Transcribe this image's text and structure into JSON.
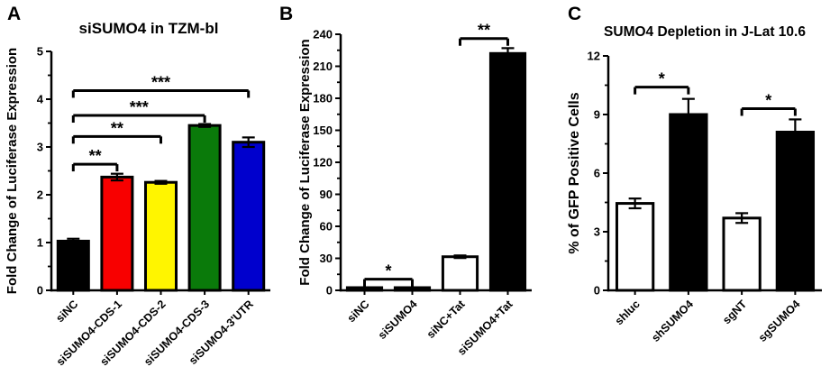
{
  "figure": {
    "background": "#FFFFFF",
    "axis_color": "#000000",
    "panels": [
      {
        "letter": "A",
        "title": "siSUMO4 in TZM-bl"
      },
      {
        "letter": "B",
        "title": ""
      },
      {
        "letter": "C",
        "title": "SUMO4 Depletion in J-Lat 10.6"
      }
    ]
  },
  "chart_data": [
    {
      "panel": "A",
      "type": "bar",
      "title": "siSUMO4 in TZM-bl",
      "xlabel": "",
      "ylabel": "Fold Change of Luciferase Expression",
      "ylim": [
        0,
        5
      ],
      "yticks": [
        0,
        1,
        2,
        3,
        4,
        5
      ],
      "grid": false,
      "legend": "none",
      "categories": [
        "siNC",
        "siSUMO4-CDS-1",
        "siSUMO4-CDS-2",
        "siSUMO4-CDS-3",
        "siSUMO4-3'UTR"
      ],
      "values": [
        1.03,
        2.37,
        2.26,
        3.45,
        3.1
      ],
      "errors": [
        0.05,
        0.07,
        0.03,
        0.03,
        0.1
      ],
      "bar_fills": [
        "#000000",
        "#F80000",
        "#FFF500",
        "#0A7A0A",
        "#0000CD"
      ],
      "significance": [
        {
          "groups": [
            "siNC",
            "siSUMO4-CDS-1"
          ],
          "y": 2.64,
          "label": "**"
        },
        {
          "groups": [
            "siNC",
            "siSUMO4-CDS-2"
          ],
          "y": 3.22,
          "label": "**"
        },
        {
          "groups": [
            "siNC",
            "siSUMO4-CDS-3"
          ],
          "y": 3.66,
          "label": "***"
        },
        {
          "groups": [
            "siNC",
            "siSUMO4-3'UTR"
          ],
          "y": 4.18,
          "label": "***"
        }
      ]
    },
    {
      "panel": "B",
      "type": "bar",
      "title": "",
      "xlabel": "",
      "ylabel": "Fold Change of Luciferase Expression",
      "ylim": [
        0,
        240
      ],
      "yticks": [
        0,
        30,
        60,
        90,
        120,
        150,
        180,
        210,
        240
      ],
      "grid": false,
      "legend": "none",
      "categories": [
        "siNC",
        "siSUMO4",
        "siNC+Tat",
        "siSUMO4+Tat"
      ],
      "values": [
        1.5,
        2.5,
        31.5,
        222
      ],
      "errors": [
        0,
        0,
        1.2,
        5
      ],
      "bar_fills": [
        "#000000",
        "#000000",
        "#FFFFFF",
        "#000000"
      ],
      "significance": [
        {
          "groups": [
            "siNC",
            "siSUMO4"
          ],
          "y": 10.5,
          "label": "*"
        },
        {
          "groups": [
            "siNC+Tat",
            "siSUMO4+Tat"
          ],
          "y": 236,
          "label": "**"
        }
      ]
    },
    {
      "panel": "C",
      "type": "bar",
      "title": "SUMO4 Depletion in J-Lat 10.6",
      "xlabel": "",
      "ylabel": "% of GFP Positive Cells",
      "ylim": [
        0,
        12
      ],
      "yticks": [
        0,
        3,
        6,
        9,
        12
      ],
      "grid": false,
      "legend": "none",
      "categories": [
        "shluc",
        "shSUMO4",
        "sgNT",
        "sgSUMO4"
      ],
      "values": [
        4.45,
        9.0,
        3.7,
        8.1
      ],
      "errors": [
        0.25,
        0.8,
        0.25,
        0.65
      ],
      "bar_fills": [
        "#FFFFFF",
        "#000000",
        "#FFFFFF",
        "#000000"
      ],
      "significance": [
        {
          "groups": [
            "shluc",
            "shSUMO4"
          ],
          "y": 10.4,
          "label": "*"
        },
        {
          "groups": [
            "sgNT",
            "sgSUMO4"
          ],
          "y": 9.3,
          "label": "*"
        }
      ]
    }
  ]
}
